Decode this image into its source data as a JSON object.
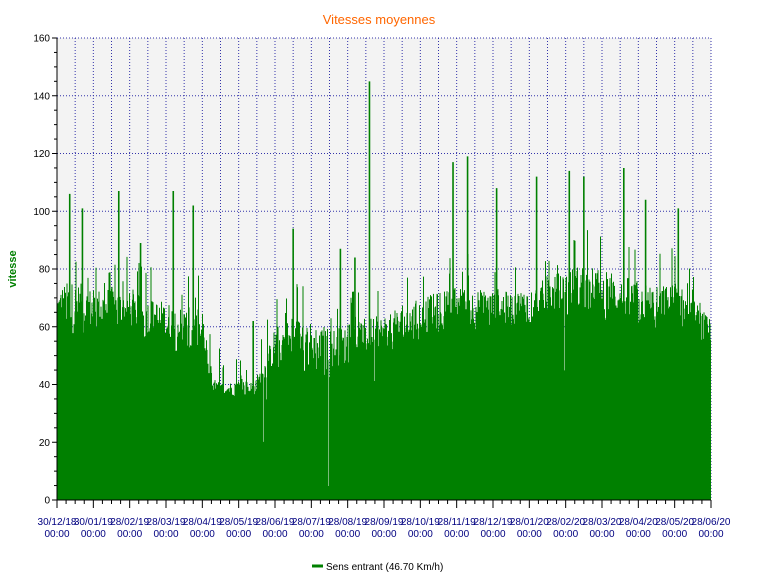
{
  "chart_data": {
    "type": "bar",
    "title": "Vitesses moyennes",
    "xlabel": "",
    "ylabel": "vitesse",
    "ylim": [
      0,
      160
    ],
    "yticks": [
      0,
      20,
      40,
      60,
      80,
      100,
      120,
      140,
      160
    ],
    "xtick_labels_top": [
      "30/12/18",
      "30/01/19",
      "28/02/19",
      "28/03/19",
      "28/04/19",
      "28/05/19",
      "28/06/19",
      "28/07/19",
      "28/08/19",
      "28/09/19",
      "28/10/19",
      "28/11/19",
      "28/12/19",
      "28/01/20",
      "28/02/20",
      "28/03/20",
      "28/04/20",
      "28/05/20",
      "28/06/20"
    ],
    "xtick_labels_bottom": [
      "00:00",
      "00:00",
      "00:00",
      "00:00",
      "00:00",
      "00:00",
      "00:00",
      "00:00",
      "00:00",
      "00:00",
      "00:00",
      "00:00",
      "00:00",
      "00:00",
      "00:00",
      "00:00",
      "00:00",
      "00:00",
      "00:00"
    ],
    "grid": true,
    "legend_position": "bottom-center",
    "series": [
      {
        "name": "Sens entrant (46.70 Km/h)",
        "color": "#008000",
        "envelope": {
          "x_months": [
            0,
            0.5,
            1,
            1.5,
            2,
            2.5,
            3,
            3.5,
            4,
            4.3,
            4.6,
            5,
            5.4,
            5.7,
            6,
            6.5,
            7,
            7.5,
            8,
            8.5,
            9,
            9.5,
            10,
            10.5,
            11,
            11.5,
            12,
            12.5,
            13,
            13.5,
            14,
            14.5,
            15,
            15.5,
            16,
            16.5,
            17,
            17.5,
            18
          ],
          "typical_max": [
            75,
            76,
            73,
            74,
            72,
            70,
            69,
            67,
            66,
            42,
            40,
            42,
            41,
            48,
            60,
            64,
            62,
            60,
            60,
            63,
            64,
            67,
            70,
            72,
            74,
            73,
            73,
            72,
            74,
            77,
            80,
            82,
            80,
            78,
            76,
            74,
            76,
            70,
            62
          ],
          "typical_min": [
            55,
            55,
            58,
            58,
            56,
            55,
            53,
            50,
            40,
            37,
            36,
            36,
            35,
            38,
            45,
            45,
            42,
            40,
            45,
            50,
            50,
            52,
            55,
            58,
            60,
            58,
            58,
            60,
            60,
            60,
            62,
            65,
            62,
            60,
            60,
            58,
            60,
            55,
            52
          ]
        },
        "spikes": [
          {
            "x_month": 0.35,
            "value": 106
          },
          {
            "x_month": 0.7,
            "value": 101
          },
          {
            "x_month": 1.7,
            "value": 107
          },
          {
            "x_month": 2.3,
            "value": 89
          },
          {
            "x_month": 3.2,
            "value": 107
          },
          {
            "x_month": 3.75,
            "value": 102
          },
          {
            "x_month": 5.4,
            "value": 62
          },
          {
            "x_month": 6.5,
            "value": 94
          },
          {
            "x_month": 7.8,
            "value": 87
          },
          {
            "x_month": 8.2,
            "value": 84
          },
          {
            "x_month": 8.6,
            "value": 145
          },
          {
            "x_month": 10.9,
            "value": 117
          },
          {
            "x_month": 11.3,
            "value": 119
          },
          {
            "x_month": 12.1,
            "value": 108
          },
          {
            "x_month": 13.2,
            "value": 112
          },
          {
            "x_month": 14.1,
            "value": 114
          },
          {
            "x_month": 14.5,
            "value": 112
          },
          {
            "x_month": 15.6,
            "value": 115
          },
          {
            "x_month": 16.2,
            "value": 104
          },
          {
            "x_month": 17.1,
            "value": 101
          }
        ]
      }
    ]
  }
}
